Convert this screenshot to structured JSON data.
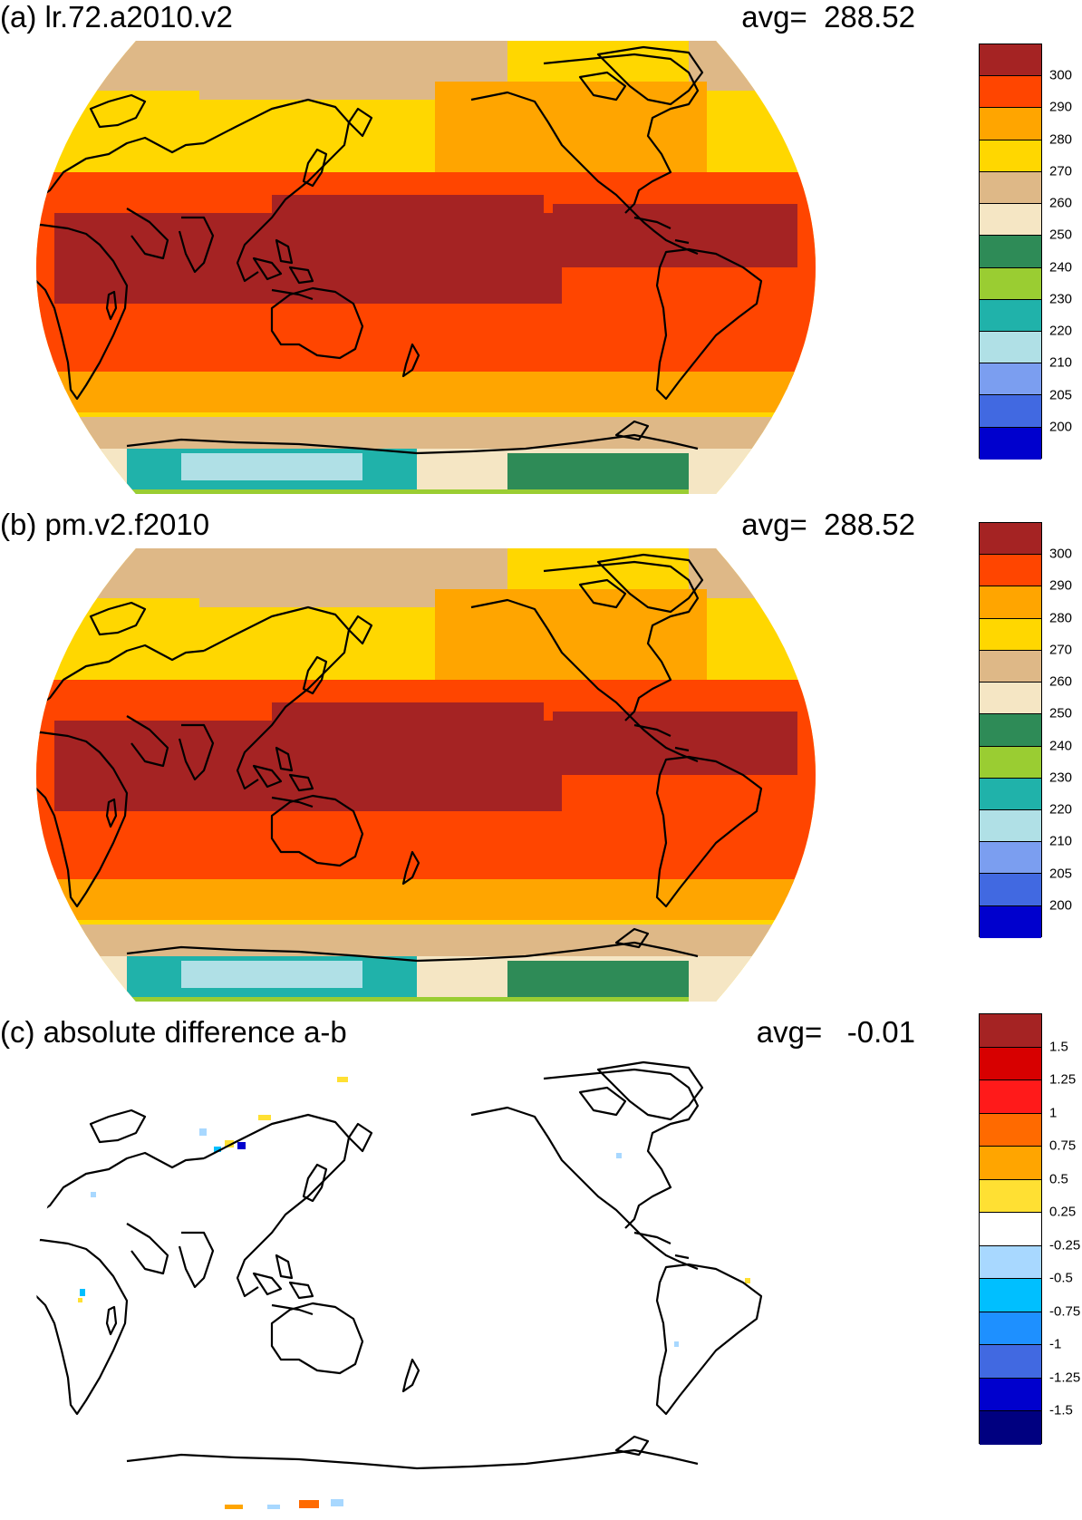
{
  "panels": [
    {
      "id": "a",
      "title": "(a) lr.72.a2010.v2",
      "avg_label": "avg=  288.52",
      "colorbar": {
        "colors": [
          "#a52323",
          "#ff4500",
          "#ffa500",
          "#ffd700",
          "#deb887",
          "#f5e6c4",
          "#2e8b57",
          "#9acd32",
          "#20b2aa",
          "#b0e0e6",
          "#7b9ef0",
          "#4169e1",
          "#0000cd"
        ],
        "labels": [
          "300",
          "290",
          "280",
          "270",
          "260",
          "250",
          "240",
          "230",
          "220",
          "210",
          "205",
          "200"
        ]
      }
    },
    {
      "id": "b",
      "title": "(b) pm.v2.f2010",
      "avg_label": "avg=  288.52",
      "colorbar": {
        "colors": [
          "#a52323",
          "#ff4500",
          "#ffa500",
          "#ffd700",
          "#deb887",
          "#f5e6c4",
          "#2e8b57",
          "#9acd32",
          "#20b2aa",
          "#b0e0e6",
          "#7b9ef0",
          "#4169e1",
          "#0000cd"
        ],
        "labels": [
          "300",
          "290",
          "280",
          "270",
          "260",
          "250",
          "240",
          "230",
          "220",
          "210",
          "205",
          "200"
        ]
      }
    },
    {
      "id": "c",
      "title": "(c) absolute difference a-b",
      "avg_label": "avg=   -0.01",
      "colorbar": {
        "colors": [
          "#a52323",
          "#d70000",
          "#ff1a1a",
          "#ff6a00",
          "#ffa500",
          "#ffe033",
          "#ffffff",
          "#a8d8ff",
          "#00bfff",
          "#1e90ff",
          "#4169e1",
          "#0000cd",
          "#000080"
        ],
        "labels": [
          "1.5",
          "1.25",
          "1",
          "0.75",
          "0.5",
          "0.25",
          "-0.25",
          "-0.5",
          "-0.75",
          "-1",
          "-1.25",
          "-1.5"
        ]
      }
    }
  ]
}
